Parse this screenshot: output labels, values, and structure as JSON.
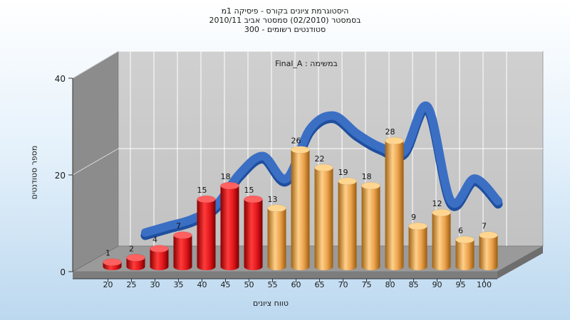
{
  "chart_data": {
    "type": "bar",
    "title_lines": [
      "היסטוגרמת ציונים בקורס - פיסיקה 1מ",
      "בסמסטר  (02/2010)  סמסטר אביב 2010/11",
      "סטודנטים רשומים - 300"
    ],
    "annotation": "Final_A : במשימה",
    "xlabel": "טווח ציונים",
    "ylabel": "מספר סטודנטים",
    "categories": [
      "20",
      "25",
      "30",
      "35",
      "40",
      "45",
      "50",
      "55",
      "60",
      "65",
      "70",
      "75",
      "80",
      "85",
      "90",
      "95",
      "100"
    ],
    "values": [
      1,
      2,
      4,
      7,
      15,
      18,
      15,
      13,
      26,
      22,
      19,
      18,
      28,
      9,
      12,
      6,
      7
    ],
    "bar_colors": [
      "red",
      "red",
      "red",
      "red",
      "red",
      "red",
      "red",
      "orange",
      "orange",
      "orange",
      "orange",
      "orange",
      "orange",
      "orange",
      "orange",
      "orange",
      "orange"
    ],
    "yticks": [
      0,
      20,
      40
    ],
    "ylim": [
      0,
      40
    ],
    "ribbon_curve_y": [
      null,
      3,
      4.5,
      6,
      9,
      16,
      20,
      15,
      26,
      29,
      25,
      22,
      21,
      31,
      10,
      15,
      10
    ],
    "colors": {
      "red": "#e0161b",
      "orange": "#f0a848",
      "ribbon": "#3a6fc4",
      "back_wall": "#c8c8c8",
      "side_wall": "#8a8a8a",
      "floor": "#9a9a9a"
    },
    "grid": true
  }
}
